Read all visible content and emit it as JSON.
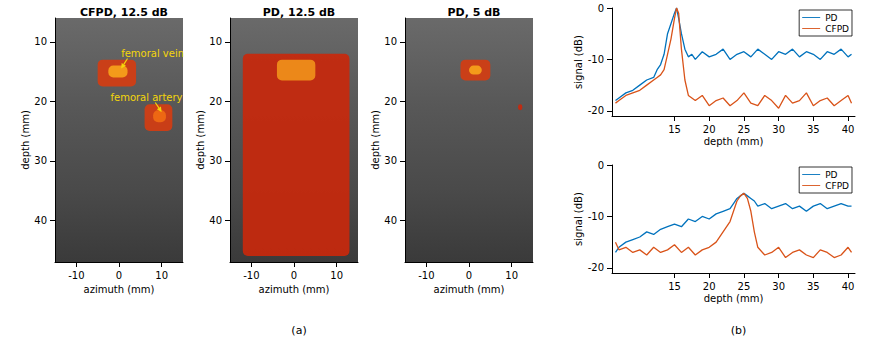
{
  "figure_labels": [
    "(a)",
    "(b)"
  ],
  "chart_data": [
    {
      "type": "image",
      "title": "CFPD, 12.5 dB",
      "xlabel": "azimuth (mm)",
      "ylabel": "depth (mm)",
      "xlim": [
        -15,
        15
      ],
      "xticks": [
        -10,
        0,
        10
      ],
      "ylim": [
        6,
        47
      ],
      "yticks": [
        10,
        20,
        30,
        40
      ],
      "grid": false,
      "flow": [
        {
          "azimuth": [
            -5,
            4
          ],
          "depth": [
            13,
            17.5
          ],
          "color": "#d43d12"
        },
        {
          "azimuth": [
            -2.5,
            2
          ],
          "depth": [
            14,
            16
          ],
          "color": "#f7a21b"
        },
        {
          "azimuth": [
            6,
            12.5
          ],
          "depth": [
            20.5,
            25
          ],
          "color": "#d43d12"
        },
        {
          "azimuth": [
            8,
            11
          ],
          "depth": [
            21.5,
            23.5
          ],
          "color": "#f06a14"
        }
      ],
      "annotations": [
        {
          "text": "femoral vein",
          "text_at": [
            0.5,
            12
          ],
          "from": [
            2,
            12.8
          ],
          "at": [
            0.5,
            14.5
          ],
          "color": "#f5d60a"
        },
        {
          "text": "femoral artery",
          "text_at": [
            -2,
            19.3
          ],
          "from": [
            8.5,
            20.2
          ],
          "at": [
            10,
            21.8
          ],
          "color": "#f5d60a"
        }
      ]
    },
    {
      "type": "image",
      "title": "PD, 12.5 dB",
      "xlabel": "azimuth (mm)",
      "ylabel": "depth (mm)",
      "xlim": [
        -15,
        15
      ],
      "xticks": [
        -10,
        0,
        10
      ],
      "ylim": [
        6,
        47
      ],
      "yticks": [
        10,
        20,
        30,
        40
      ],
      "grid": false,
      "flow": [
        {
          "azimuth": [
            -12,
            13
          ],
          "depth": [
            12,
            46
          ],
          "color": "#c8280c"
        },
        {
          "azimuth": [
            -4,
            5
          ],
          "depth": [
            13,
            16.5
          ],
          "color": "#f0901a"
        }
      ]
    },
    {
      "type": "image",
      "title": "PD, 5 dB",
      "xlabel": "azimuth (mm)",
      "ylabel": "depth (mm)",
      "xlim": [
        -15,
        15
      ],
      "xticks": [
        -10,
        0,
        10
      ],
      "ylim": [
        6,
        47
      ],
      "yticks": [
        10,
        20,
        30,
        40
      ],
      "grid": false,
      "flow": [
        {
          "azimuth": [
            -2,
            5
          ],
          "depth": [
            13,
            16.5
          ],
          "color": "#d43d12"
        },
        {
          "azimuth": [
            0,
            3
          ],
          "depth": [
            14,
            15.5
          ],
          "color": "#f7a21b"
        },
        {
          "azimuth": [
            11.5,
            12.5
          ],
          "depth": [
            20.5,
            21.5
          ],
          "color": "#c8280c"
        }
      ]
    },
    {
      "type": "line",
      "xlabel": "depth (mm)",
      "ylabel": "signal (dB)",
      "xlim": [
        6,
        41
      ],
      "xticks": [
        15,
        20,
        25,
        30,
        35,
        40
      ],
      "ylim": [
        -21,
        0
      ],
      "yticks": [
        0,
        -10,
        -20
      ],
      "grid": false,
      "legend": "upper right",
      "x": [
        6.5,
        7,
        8,
        9,
        10,
        11,
        12,
        12.5,
        13,
        13.5,
        14,
        14.5,
        15,
        15.3,
        15.6,
        16,
        16.5,
        17,
        17.5,
        18,
        19,
        20,
        21,
        22,
        23,
        24,
        25,
        26,
        27,
        28,
        29,
        30,
        31,
        32,
        33,
        34,
        35,
        36,
        37,
        38,
        39,
        40,
        40.5
      ],
      "series": [
        {
          "name": "PD",
          "color": "#0072bd",
          "values": [
            -18,
            -17.5,
            -16.5,
            -16,
            -15,
            -14,
            -13.5,
            -12,
            -11,
            -9,
            -5,
            -3,
            -1,
            0,
            -2,
            -5,
            -8,
            -9.5,
            -9,
            -10,
            -8.5,
            -9.5,
            -9,
            -8,
            -10,
            -9,
            -8.5,
            -9.5,
            -8,
            -9,
            -10,
            -8.5,
            -9,
            -8,
            -9.5,
            -8.5,
            -9,
            -10,
            -8.5,
            -9,
            -8,
            -9.5,
            -9
          ]
        },
        {
          "name": "CFPD",
          "color": "#d95319",
          "values": [
            -18.5,
            -18,
            -17,
            -16.5,
            -16,
            -15,
            -14,
            -13.5,
            -13,
            -12,
            -9,
            -6,
            -2,
            0,
            -1,
            -8,
            -14,
            -17,
            -17.5,
            -18,
            -17,
            -19,
            -18,
            -17.5,
            -19,
            -18,
            -16.5,
            -18.5,
            -19,
            -17,
            -18,
            -19.5,
            -17,
            -18.5,
            -18,
            -16.5,
            -19,
            -18,
            -17.5,
            -19,
            -18,
            -17,
            -18.5
          ]
        }
      ]
    },
    {
      "type": "line",
      "xlabel": "depth (mm)",
      "ylabel": "signal (dB)",
      "xlim": [
        6,
        41
      ],
      "xticks": [
        15,
        20,
        25,
        30,
        35,
        40
      ],
      "ylim": [
        -21,
        0
      ],
      "yticks": [
        0,
        -10,
        -20
      ],
      "grid": false,
      "legend": "upper right",
      "x": [
        6.5,
        7,
        8,
        9,
        10,
        11,
        12,
        13,
        14,
        15,
        16,
        17,
        18,
        19,
        20,
        21,
        22,
        23,
        23.5,
        24,
        24.5,
        25,
        25.5,
        26,
        26.5,
        27,
        28,
        29,
        30,
        31,
        32,
        33,
        34,
        35,
        36,
        37,
        38,
        39,
        40,
        40.5
      ],
      "series": [
        {
          "name": "PD",
          "color": "#0072bd",
          "values": [
            -17,
            -16,
            -15,
            -14.5,
            -14,
            -13,
            -13.5,
            -12.5,
            -12,
            -11.5,
            -12,
            -10.5,
            -11,
            -10,
            -10.5,
            -9.5,
            -9,
            -8.5,
            -7.5,
            -6.5,
            -6,
            -5.5,
            -6,
            -6.5,
            -7,
            -8,
            -7.5,
            -8.5,
            -8,
            -7.5,
            -8.5,
            -8,
            -9,
            -8,
            -7.5,
            -8.5,
            -8,
            -7.5,
            -8,
            -8
          ]
        },
        {
          "name": "CFPD",
          "color": "#d95319",
          "values": [
            -15,
            -16.5,
            -16,
            -17,
            -16.5,
            -17.5,
            -16,
            -17,
            -16.5,
            -15.5,
            -17,
            -16,
            -17.5,
            -16.5,
            -16,
            -15,
            -13,
            -11,
            -9,
            -7,
            -6,
            -5.5,
            -6.5,
            -9,
            -13,
            -16,
            -17.5,
            -17,
            -16,
            -18,
            -17,
            -16.5,
            -17.5,
            -18,
            -16.5,
            -17,
            -18,
            -17.5,
            -16,
            -17
          ]
        }
      ]
    }
  ]
}
